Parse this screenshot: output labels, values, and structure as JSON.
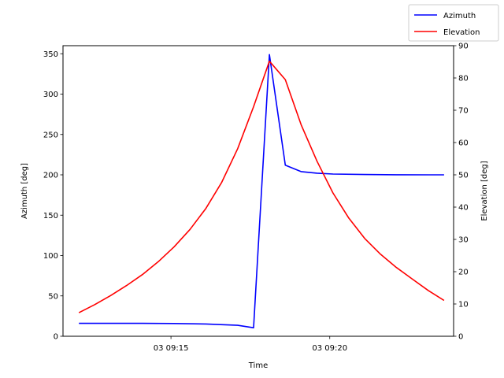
{
  "chart_data": {
    "type": "line",
    "xlabel": "Time",
    "ylabel_left": "Azimuth [deg]",
    "ylabel_right": "Elevation [deg]",
    "x_ticks": [
      {
        "minute": 15,
        "label": "03 09:15"
      },
      {
        "minute": 20,
        "label": "03 09:20"
      }
    ],
    "xlim": [
      11.6,
      23.9
    ],
    "ylim_left": [
      0,
      360
    ],
    "ylim_right": [
      0,
      90
    ],
    "y_ticks_left": [
      0,
      50,
      100,
      150,
      200,
      250,
      300,
      350
    ],
    "y_ticks_right": [
      0,
      10,
      20,
      30,
      40,
      50,
      60,
      70,
      80,
      90
    ],
    "legend_position": "top-right",
    "grid": false,
    "series": [
      {
        "name": "Azimuth",
        "axis": "left",
        "color": "#0000ff",
        "minutes": [
          12.1,
          13.1,
          14.1,
          15.1,
          16.1,
          17.1,
          17.6,
          18.1,
          18.6,
          19.1,
          19.6,
          20.1,
          21.1,
          22.1,
          23.1,
          23.6
        ],
        "values": [
          16,
          16,
          16,
          15.8,
          15.2,
          13.6,
          10.5,
          349,
          212,
          204,
          202,
          201,
          200.4,
          200.1,
          200,
          200
        ]
      },
      {
        "name": "Elevation",
        "axis": "right",
        "color": "#ff0000",
        "minutes": [
          12.1,
          12.6,
          13.1,
          13.6,
          14.1,
          14.6,
          15.1,
          15.6,
          16.1,
          16.6,
          17.1,
          17.6,
          18.1,
          18.6,
          19.1,
          19.6,
          20.1,
          20.6,
          21.1,
          21.6,
          22.1,
          22.6,
          23.1,
          23.6
        ],
        "values": [
          7.3,
          9.8,
          12.6,
          15.7,
          19.1,
          23.1,
          27.7,
          33.1,
          39.6,
          47.7,
          58.1,
          71.1,
          85.2,
          79.5,
          65.5,
          54.2,
          44.4,
          36.6,
          30.3,
          25.4,
          21.3,
          17.7,
          14.2,
          11.1
        ]
      }
    ]
  }
}
